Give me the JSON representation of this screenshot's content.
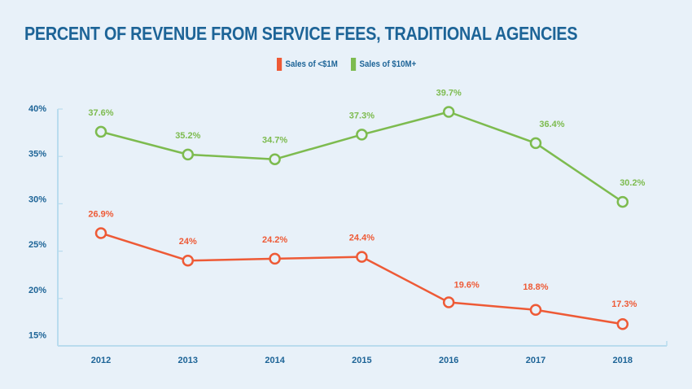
{
  "chart_data": {
    "type": "line",
    "title": "PERCENT OF REVENUE FROM SERVICE FEES, TRADITIONAL AGENCIES",
    "xlabel": "",
    "ylabel": "",
    "x": [
      "2012",
      "2013",
      "2014",
      "2015",
      "2016",
      "2017",
      "2018"
    ],
    "ylim": [
      15,
      40
    ],
    "yticks": [
      40,
      35,
      30,
      25,
      20,
      15
    ],
    "ytick_labels": [
      "40%",
      "35%",
      "30%",
      "25%",
      "20%",
      "15%"
    ],
    "grid": false,
    "legend_position": "top-center",
    "series": [
      {
        "name": "Sales of <$1M",
        "color": "#ee5a36",
        "values": [
          26.9,
          24,
          24.2,
          24.4,
          19.6,
          18.8,
          17.3
        ],
        "labels": [
          "26.9%",
          "24%",
          "24.2%",
          "24.4%",
          "19.6%",
          "18.8%",
          "17.3%"
        ]
      },
      {
        "name": "Sales of $10M+",
        "color": "#7dbb4f",
        "values": [
          37.6,
          35.2,
          34.7,
          37.3,
          39.7,
          36.4,
          30.2
        ],
        "labels": [
          "37.6%",
          "35.2%",
          "34.7%",
          "37.3%",
          "39.7%",
          "36.4%",
          "30.2%"
        ]
      }
    ]
  },
  "colors": {
    "text": "#1d6497",
    "axis": "#b9dcee",
    "background": "#e8f1f9"
  }
}
